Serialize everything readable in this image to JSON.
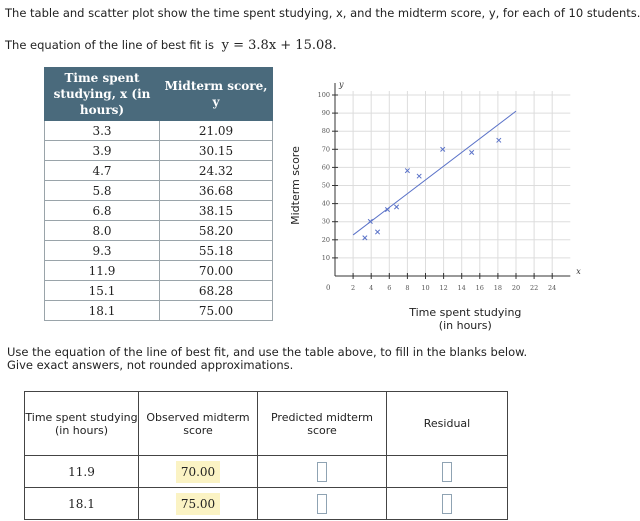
{
  "intro": {
    "line1": "The table and scatter plot show the time spent studying, x, and the midterm score, y, for each of 10 students.",
    "line2_prefix": "The equation of the line of best fit is",
    "equation": "y = 3.8x + 15.08."
  },
  "data_table": {
    "headers": [
      "Time spent studying, x (in hours)",
      "Midterm score, y"
    ],
    "rows": [
      [
        "3.3",
        "21.09"
      ],
      [
        "3.9",
        "30.15"
      ],
      [
        "4.7",
        "24.32"
      ],
      [
        "5.8",
        "36.68"
      ],
      [
        "6.8",
        "38.15"
      ],
      [
        "8.0",
        "58.20"
      ],
      [
        "9.3",
        "55.18"
      ],
      [
        "11.9",
        "70.00"
      ],
      [
        "15.1",
        "68.28"
      ],
      [
        "18.1",
        "75.00"
      ]
    ]
  },
  "chart_data": {
    "type": "scatter",
    "points": [
      [
        3.3,
        21.09
      ],
      [
        3.9,
        30.15
      ],
      [
        4.7,
        24.32
      ],
      [
        5.8,
        36.68
      ],
      [
        6.8,
        38.15
      ],
      [
        8.0,
        58.2
      ],
      [
        9.3,
        55.18
      ],
      [
        11.9,
        70.0
      ],
      [
        15.1,
        68.28
      ],
      [
        18.1,
        75.0
      ]
    ],
    "line": {
      "slope": 3.8,
      "intercept": 15.08,
      "x_range": [
        2,
        20
      ]
    },
    "xlabel": "Time spent studying\n(in hours)",
    "ylabel": "Midterm score",
    "x_axis_letter": "x",
    "y_axis_letter": "y",
    "xlim": [
      0,
      26
    ],
    "ylim": [
      0,
      100
    ],
    "x_ticks": [
      2,
      4,
      6,
      8,
      10,
      12,
      14,
      16,
      18,
      20,
      22,
      24
    ],
    "y_ticks": [
      10,
      20,
      30,
      40,
      50,
      60,
      70,
      80,
      90,
      100
    ],
    "origin_label": "0",
    "colors": {
      "point": "#5a72c8",
      "line": "#5a72c8",
      "axis": "#333333",
      "grid": "#dddddd"
    }
  },
  "instructions": {
    "line1": "Use the equation of the line of best fit, and use the table above, to fill in the blanks below.",
    "line2": "Give exact answers, not rounded approximations."
  },
  "answer_table": {
    "headers": [
      "Time spent studying (in hours)",
      "Observed midterm score",
      "Predicted midterm score",
      "Residual"
    ],
    "rows": [
      {
        "time": "11.9",
        "observed": "70.00",
        "predicted": "",
        "residual": ""
      },
      {
        "time": "18.1",
        "observed": "75.00",
        "predicted": "",
        "residual": ""
      }
    ]
  }
}
